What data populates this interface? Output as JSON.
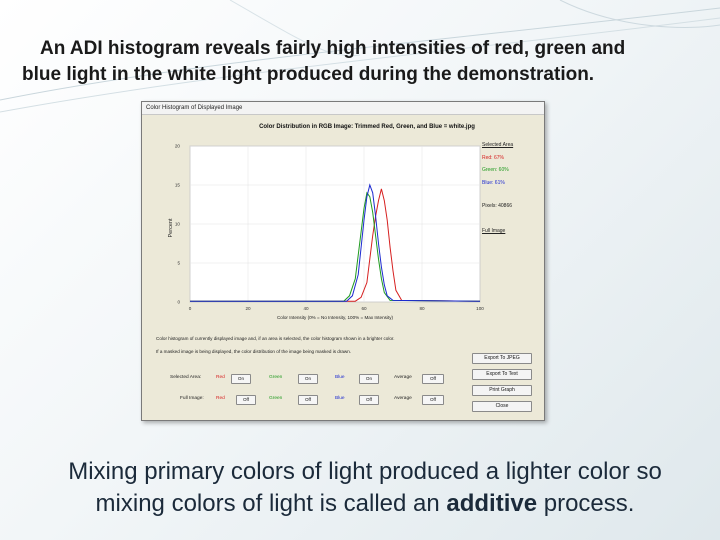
{
  "slide": {
    "heading_line1": "An ADI  histogram reveals fairly high intensities of red, green and",
    "heading_line2": "blue light in the white light produced during the demonstration.",
    "caption_line1": "Mixing primary colors of light produced a lighter color so",
    "caption_line2_before": "mixing colors of light is called an ",
    "caption_line2_bold": "additive",
    "caption_line2_after": " process."
  },
  "window": {
    "title": "Color Histogram of Displayed Image",
    "chart_title": "Color Distribution in RGB Image: Trimmed Red, Green, and Blue = white.jpg",
    "side": {
      "selected_area": "Selected Area",
      "red": "Red: 67%",
      "green": "Green: 60%",
      "blue": "Blue: 61%",
      "pixels": "Pixels: 40866",
      "full_image": "Full Image"
    },
    "note1": "Color histogram of currently displayed image and, if an area is selected, the color histogram shown in a brighter color.",
    "note2": "If a masked image is being displayed, the color distribution of the image being masked is drawn.",
    "rows": [
      {
        "label": "Selected Area:",
        "red": "Red",
        "red_btn": "On",
        "green": "Green",
        "green_btn": "On",
        "blue": "Blue",
        "blue_btn": "On",
        "avg": "Average",
        "avg_btn": "Off"
      },
      {
        "label": "Full Image:",
        "red": "Red",
        "red_btn": "Off",
        "green": "Green",
        "green_btn": "Off",
        "blue": "Blue",
        "blue_btn": "Off",
        "avg": "Average",
        "avg_btn": "Off"
      }
    ],
    "buttons": {
      "export_jpeg": "Export To JPEG",
      "export_text": "Export To Text",
      "print_graph": "Print Graph",
      "close": "Close"
    },
    "colors": {
      "red": "#d62020",
      "green": "#1e9a1e",
      "blue": "#1c2ad0"
    }
  },
  "chart_data": {
    "type": "line",
    "title": "Color Distribution in RGB Image: Trimmed Red, Green, and Blue = white.jpg",
    "xlabel": "Color Intensity (0% = No Intensity, 100% = Max Intensity)",
    "ylabel": "Percent",
    "xlim": [
      0,
      100
    ],
    "ylim": [
      0,
      20
    ],
    "x_ticks": [
      "0",
      "20",
      "40",
      "60",
      "80",
      "100"
    ],
    "y_ticks": [
      "0",
      "5",
      "10",
      "15",
      "20"
    ],
    "grid": true,
    "series": [
      {
        "color": "#d62020",
        "x": [
          0,
          57,
          59,
          61,
          62,
          63,
          64,
          65,
          66,
          67,
          68,
          69,
          70,
          71,
          73,
          100
        ],
        "y": [
          0.1,
          0.1,
          0.6,
          2.5,
          5.5,
          8.5,
          11,
          13,
          14.5,
          13,
          10.5,
          7,
          4,
          1.5,
          0.2,
          0.1
        ]
      },
      {
        "color": "#1e9a1e",
        "x": [
          0,
          53,
          55,
          57,
          58,
          59,
          60,
          61,
          62,
          63,
          64,
          65,
          66,
          67,
          69,
          100
        ],
        "y": [
          0.1,
          0.1,
          0.8,
          3,
          6,
          9,
          12,
          14,
          13.5,
          11.5,
          8.5,
          5.5,
          3,
          1.2,
          0.2,
          0.1
        ]
      },
      {
        "color": "#1c2ad0",
        "x": [
          0,
          54,
          56,
          58,
          59,
          60,
          61,
          62,
          63,
          64,
          65,
          66,
          67,
          68,
          70,
          100
        ],
        "y": [
          0.1,
          0.1,
          0.8,
          3.5,
          7,
          10.5,
          13.5,
          15,
          14,
          11,
          7.5,
          4.5,
          2.2,
          0.8,
          0.2,
          0.1
        ]
      }
    ]
  }
}
